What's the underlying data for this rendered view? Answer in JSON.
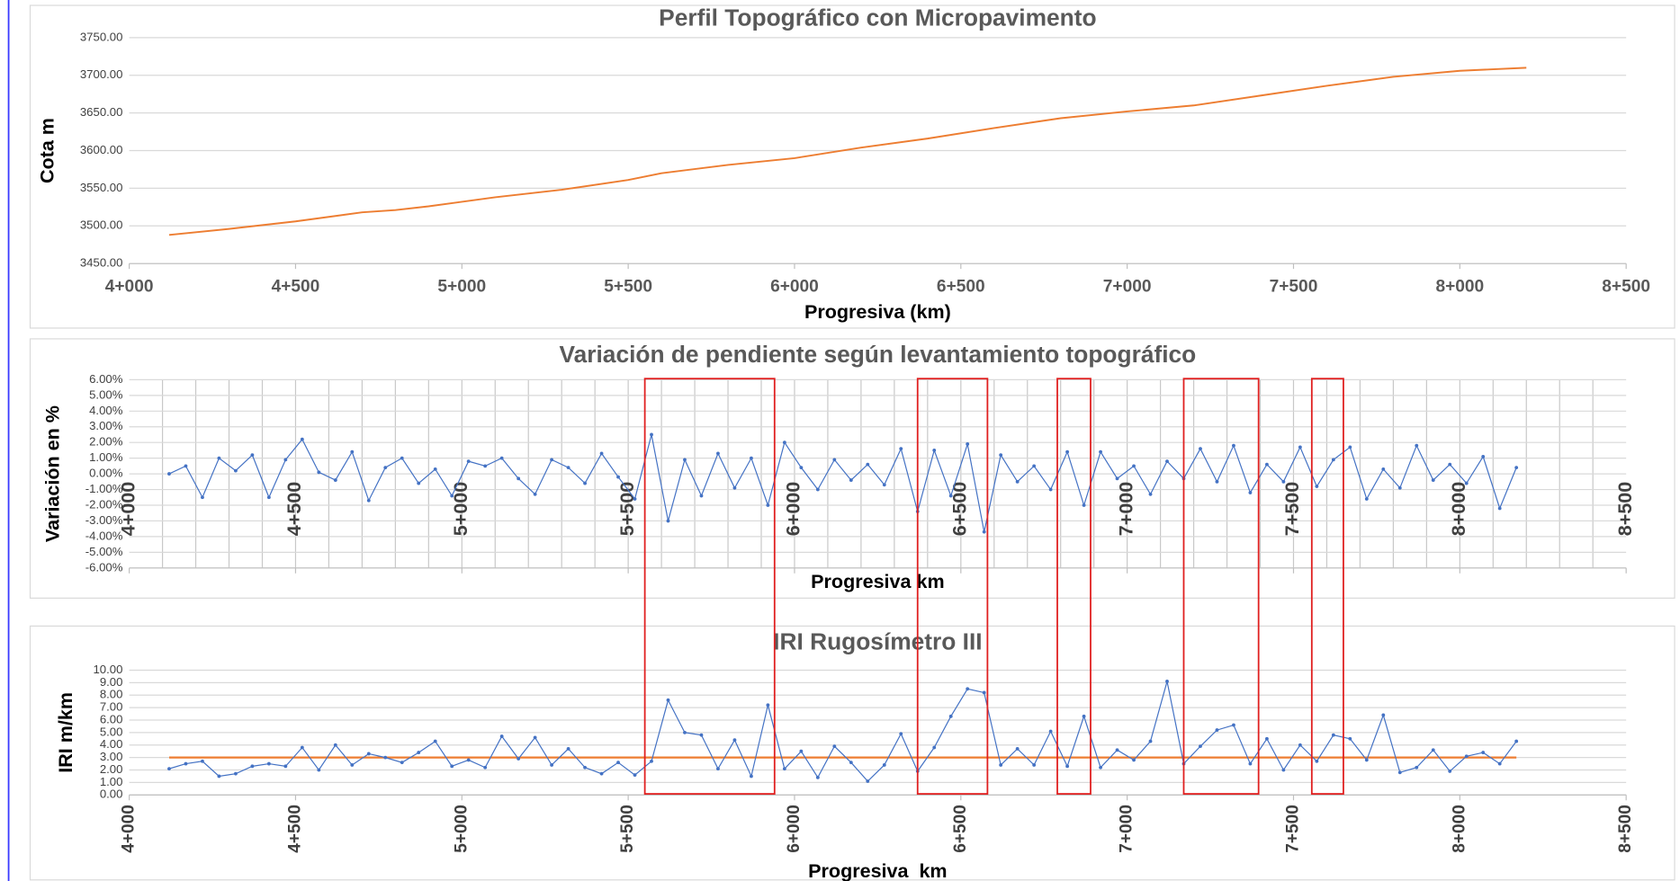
{
  "chart_data": [
    {
      "type": "line",
      "title": "Perfil Topográfico con Micropavimento",
      "x_label": "Progresiva (km)",
      "y_label": "Cota m",
      "x": [
        4120,
        4300,
        4500,
        4700,
        4800,
        4900,
        5100,
        5300,
        5500,
        5600,
        5800,
        6000,
        6200,
        6400,
        6600,
        6800,
        7000,
        7200,
        7400,
        7600,
        7800,
        8000,
        8200
      ],
      "series": [
        {
          "color": "#ed7d31",
          "values": [
            3488,
            3496,
            3506,
            3518,
            3521,
            3526,
            3538,
            3548,
            3561,
            3570,
            3581,
            3590,
            3604,
            3616,
            3630,
            3643,
            3652,
            3660,
            3673,
            3686,
            3698,
            3706,
            3710
          ]
        }
      ],
      "xlim": [
        4000,
        8500
      ],
      "xticks": [
        {
          "value": 4000,
          "label": "4+000"
        },
        {
          "value": 4500,
          "label": "4+500"
        },
        {
          "value": 5000,
          "label": "5+000"
        },
        {
          "value": 5500,
          "label": "5+500"
        },
        {
          "value": 6000,
          "label": "6+000"
        },
        {
          "value": 6500,
          "label": "6+500"
        },
        {
          "value": 7000,
          "label": "7+000"
        },
        {
          "value": 7500,
          "label": "7+500"
        },
        {
          "value": 8000,
          "label": "8+000"
        },
        {
          "value": 8500,
          "label": "8+500"
        }
      ],
      "ylim": [
        3450,
        3750
      ],
      "yticks": [
        {
          "value": 3450,
          "label": "3450.00"
        },
        {
          "value": 3500,
          "label": "3500.00"
        },
        {
          "value": 3550,
          "label": "3550.00"
        },
        {
          "value": 3600,
          "label": "3600.00"
        },
        {
          "value": 3650,
          "label": "3650.00"
        },
        {
          "value": 3700,
          "label": "3700.00"
        },
        {
          "value": 3750,
          "label": "3750.00"
        }
      ],
      "grid": true,
      "markers": false
    },
    {
      "type": "line",
      "title": "Variación de pendiente según levantamiento topográfico",
      "x_label": "Progresiva km",
      "y_label": "Variación en %",
      "x": [
        4120,
        4170,
        4220,
        4270,
        4320,
        4370,
        4420,
        4470,
        4520,
        4570,
        4620,
        4670,
        4720,
        4770,
        4820,
        4870,
        4920,
        4970,
        5020,
        5070,
        5120,
        5170,
        5220,
        5270,
        5320,
        5370,
        5420,
        5470,
        5520,
        5570,
        5620,
        5670,
        5720,
        5770,
        5820,
        5870,
        5920,
        5970,
        6020,
        6070,
        6120,
        6170,
        6220,
        6270,
        6320,
        6370,
        6420,
        6470,
        6520,
        6570,
        6620,
        6670,
        6720,
        6770,
        6820,
        6870,
        6920,
        6970,
        7020,
        7070,
        7120,
        7170,
        7220,
        7270,
        7320,
        7370,
        7420,
        7470,
        7520,
        7570,
        7620,
        7670,
        7720,
        7770,
        7820,
        7870,
        7920,
        7970,
        8020,
        8070,
        8120,
        8170
      ],
      "series": [
        {
          "color": "#4472c4",
          "values": [
            0.0,
            0.5,
            -1.5,
            1.0,
            0.2,
            1.2,
            -1.5,
            0.9,
            2.2,
            0.1,
            -0.4,
            1.4,
            -1.7,
            0.4,
            1.0,
            -0.6,
            0.3,
            -1.4,
            0.8,
            0.5,
            1.0,
            -0.3,
            -1.3,
            0.9,
            0.4,
            -0.6,
            1.3,
            -0.2,
            -1.6,
            2.5,
            -3.0,
            0.9,
            -1.4,
            1.3,
            -0.9,
            1.0,
            -2.0,
            2.0,
            0.4,
            -1.0,
            0.9,
            -0.4,
            0.6,
            -0.7,
            1.6,
            -2.4,
            1.5,
            -1.4,
            1.9,
            -3.7,
            1.2,
            -0.5,
            0.5,
            -1.0,
            1.4,
            -2.0,
            1.4,
            -0.3,
            0.5,
            -1.3,
            0.8,
            -0.3,
            1.6,
            -0.5,
            1.8,
            -1.2,
            0.6,
            -0.5,
            1.7,
            -0.8,
            0.9,
            1.7,
            -1.6,
            0.3,
            -0.9,
            1.8,
            -0.4,
            0.6,
            -0.6,
            1.1,
            -2.2,
            0.4
          ]
        }
      ],
      "xlim": [
        4000,
        8500
      ],
      "xticks": [
        {
          "value": 4000,
          "label": "4+000"
        },
        {
          "value": 4500,
          "label": "4+500"
        },
        {
          "value": 5000,
          "label": "5+000"
        },
        {
          "value": 5500,
          "label": "5+500"
        },
        {
          "value": 6000,
          "label": "6+000"
        },
        {
          "value": 6500,
          "label": "6+500"
        },
        {
          "value": 7000,
          "label": "7+000"
        },
        {
          "value": 7500,
          "label": "7+500"
        },
        {
          "value": 8000,
          "label": "8+000"
        },
        {
          "value": 8500,
          "label": "8+500"
        }
      ],
      "xtick_rotation": -90,
      "x_minor_grid": 100,
      "ylim": [
        -6,
        6
      ],
      "yticks": [
        {
          "value": -6,
          "label": "-6.00%"
        },
        {
          "value": -5,
          "label": "-5.00%"
        },
        {
          "value": -4,
          "label": "-4.00%"
        },
        {
          "value": -3,
          "label": "-3.00%"
        },
        {
          "value": -2,
          "label": "-2.00%"
        },
        {
          "value": -1,
          "label": "-1.00%"
        },
        {
          "value": 0,
          "label": "0.00%"
        },
        {
          "value": 1,
          "label": "1.00%"
        },
        {
          "value": 2,
          "label": "2.00%"
        },
        {
          "value": 3,
          "label": "3.00%"
        },
        {
          "value": 4,
          "label": "4.00%"
        },
        {
          "value": 5,
          "label": "5.00%"
        },
        {
          "value": 6,
          "label": "6.00%"
        }
      ],
      "grid": true,
      "markers": true
    },
    {
      "type": "line",
      "title": "IRI Rugosímetro III",
      "x_label": "Progresiva  km",
      "y_label": "IRI m/km",
      "x": [
        4120,
        4170,
        4220,
        4270,
        4320,
        4370,
        4420,
        4470,
        4520,
        4570,
        4620,
        4670,
        4720,
        4770,
        4820,
        4870,
        4920,
        4970,
        5020,
        5070,
        5120,
        5170,
        5220,
        5270,
        5320,
        5370,
        5420,
        5470,
        5520,
        5570,
        5620,
        5670,
        5720,
        5770,
        5820,
        5870,
        5920,
        5970,
        6020,
        6070,
        6120,
        6170,
        6220,
        6270,
        6320,
        6370,
        6420,
        6470,
        6520,
        6570,
        6620,
        6670,
        6720,
        6770,
        6820,
        6870,
        6920,
        6970,
        7020,
        7070,
        7120,
        7170,
        7220,
        7270,
        7320,
        7370,
        7420,
        7470,
        7520,
        7570,
        7620,
        7670,
        7720,
        7770,
        7820,
        7870,
        7920,
        7970,
        8020,
        8070,
        8120,
        8170
      ],
      "series": [
        {
          "color": "#4472c4",
          "values": [
            2.1,
            2.5,
            2.7,
            1.5,
            1.7,
            2.3,
            2.5,
            2.3,
            3.8,
            2.0,
            4.0,
            2.4,
            3.3,
            3.0,
            2.6,
            3.4,
            4.3,
            2.3,
            2.8,
            2.2,
            4.7,
            2.9,
            4.6,
            2.4,
            3.7,
            2.2,
            1.7,
            2.6,
            1.6,
            2.7,
            7.6,
            5.0,
            4.8,
            2.1,
            4.4,
            1.5,
            7.2,
            2.1,
            3.5,
            1.4,
            3.9,
            2.6,
            1.1,
            2.4,
            4.9,
            1.9,
            3.8,
            6.3,
            8.5,
            8.2,
            2.4,
            3.7,
            2.4,
            5.1,
            2.3,
            6.3,
            2.2,
            3.6,
            2.8,
            4.3,
            9.1,
            2.5,
            3.9,
            5.2,
            5.6,
            2.5,
            4.5,
            2.0,
            4.0,
            2.7,
            4.8,
            4.5,
            2.8,
            6.4,
            1.8,
            2.2,
            3.6,
            1.9,
            3.1,
            3.4,
            2.5,
            4.3
          ]
        }
      ],
      "reference_line": {
        "value": 3,
        "color": "#ed7d31"
      },
      "xlim": [
        4000,
        8500
      ],
      "xticks": [
        {
          "value": 4000,
          "label": "4+000"
        },
        {
          "value": 4500,
          "label": "4+500"
        },
        {
          "value": 5000,
          "label": "5+000"
        },
        {
          "value": 5500,
          "label": "5+500"
        },
        {
          "value": 6000,
          "label": "6+000"
        },
        {
          "value": 6500,
          "label": "6+500"
        },
        {
          "value": 7000,
          "label": "7+000"
        },
        {
          "value": 7500,
          "label": "7+500"
        },
        {
          "value": 8000,
          "label": "8+000"
        },
        {
          "value": 8500,
          "label": "8+500"
        }
      ],
      "xtick_rotation": -90,
      "ylim": [
        0,
        10
      ],
      "yticks": [
        {
          "value": 0,
          "label": "0.00"
        },
        {
          "value": 1,
          "label": "1.00"
        },
        {
          "value": 2,
          "label": "2.00"
        },
        {
          "value": 3,
          "label": "3.00"
        },
        {
          "value": 4,
          "label": "4.00"
        },
        {
          "value": 5,
          "label": "5.00"
        },
        {
          "value": 6,
          "label": "6.00"
        },
        {
          "value": 7,
          "label": "7.00"
        },
        {
          "value": 8,
          "label": "8.00"
        },
        {
          "value": 9,
          "label": "9.00"
        },
        {
          "value": 10,
          "label": "10.00"
        }
      ],
      "grid": true,
      "markers": true
    }
  ],
  "highlights": {
    "color": "#e02020",
    "ranges": [
      [
        5550,
        5940
      ],
      [
        6370,
        6580
      ],
      [
        6790,
        6890
      ],
      [
        7170,
        7395
      ],
      [
        7555,
        7650
      ]
    ]
  }
}
